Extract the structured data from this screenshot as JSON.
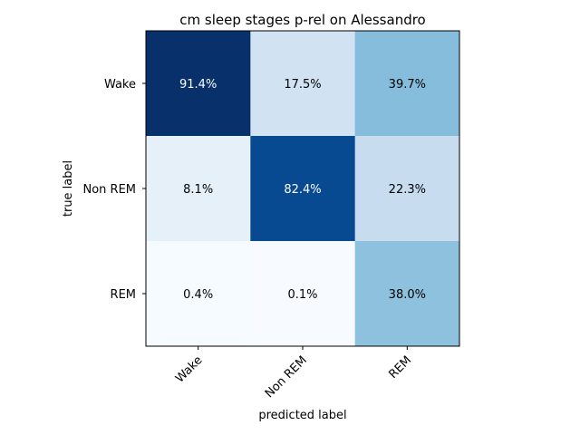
{
  "chart_data": {
    "type": "heatmap",
    "title": "cm sleep stages p-rel on Alessandro",
    "xlabel": "predicted label",
    "ylabel": "true label",
    "x_categories": [
      "Wake",
      "Non REM",
      "REM"
    ],
    "y_categories": [
      "Wake",
      "Non REM",
      "REM"
    ],
    "values": [
      [
        91.4,
        17.5,
        39.7
      ],
      [
        8.1,
        82.4,
        22.3
      ],
      [
        0.4,
        0.1,
        38.0
      ]
    ],
    "cell_labels": [
      [
        "91.4%",
        "17.5%",
        "39.7%"
      ],
      [
        "8.1%",
        "82.4%",
        "22.3%"
      ],
      [
        "0.4%",
        "0.1%",
        "38.0%"
      ]
    ],
    "colormap": "Blues",
    "value_range": [
      0.1,
      91.4
    ]
  }
}
